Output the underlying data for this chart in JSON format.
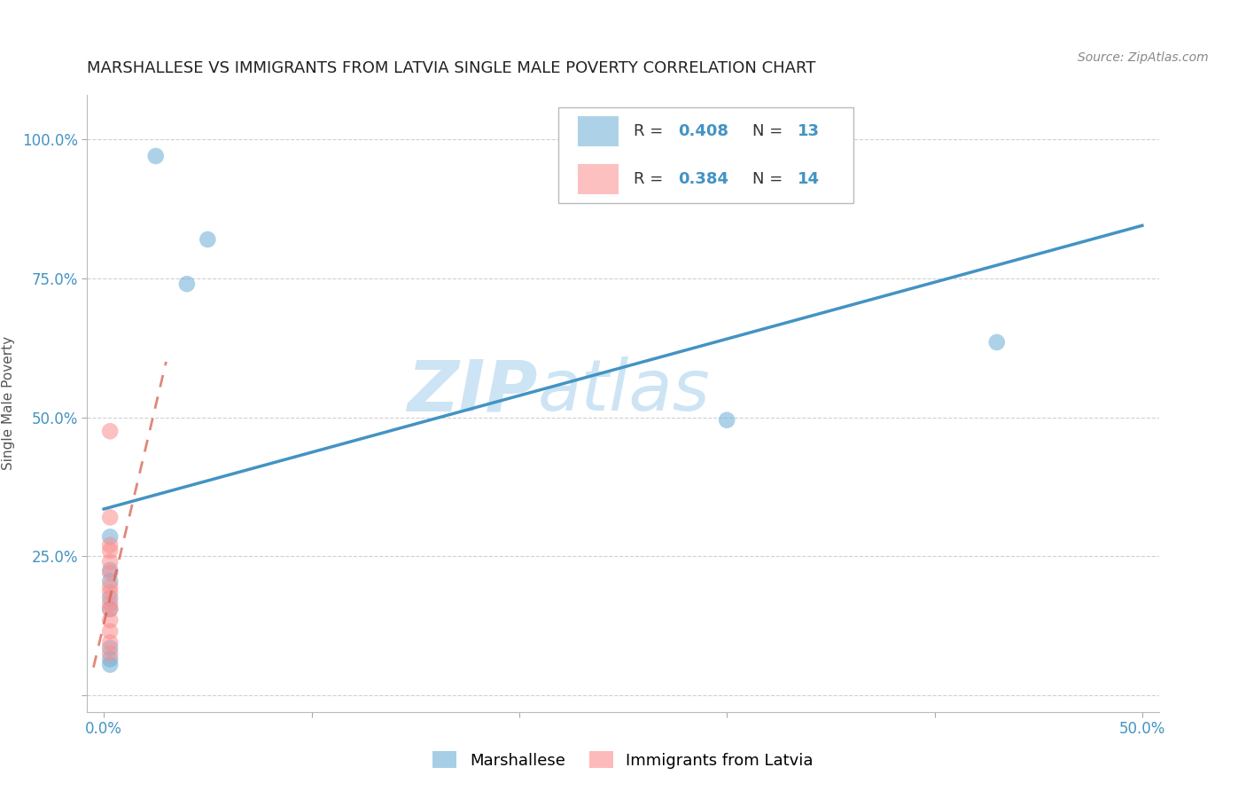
{
  "title": "MARSHALLESE VS IMMIGRANTS FROM LATVIA SINGLE MALE POVERTY CORRELATION CHART",
  "source": "Source: ZipAtlas.com",
  "ylabel": "Single Male Poverty",
  "xlim": [
    -0.008,
    0.508
  ],
  "ylim": [
    -0.03,
    1.08
  ],
  "xticks": [
    0.0,
    0.1,
    0.2,
    0.3,
    0.4,
    0.5
  ],
  "xticklabels": [
    "0.0%",
    "",
    "",
    "",
    "",
    "50.0%"
  ],
  "yticks": [
    0.0,
    0.25,
    0.5,
    0.75,
    1.0
  ],
  "yticklabels": [
    "",
    "25.0%",
    "50.0%",
    "75.0%",
    "100.0%"
  ],
  "marshallese_x": [
    0.025,
    0.04,
    0.05,
    0.003,
    0.003,
    0.003,
    0.003,
    0.003,
    0.003,
    0.003,
    0.003,
    0.43,
    0.3
  ],
  "marshallese_y": [
    0.97,
    0.74,
    0.82,
    0.285,
    0.225,
    0.205,
    0.175,
    0.155,
    0.085,
    0.065,
    0.055,
    0.635,
    0.495
  ],
  "latvia_x": [
    0.003,
    0.003,
    0.003,
    0.003,
    0.003,
    0.003,
    0.003,
    0.003,
    0.003,
    0.003,
    0.003,
    0.003,
    0.003,
    0.003
  ],
  "latvia_y": [
    0.475,
    0.32,
    0.27,
    0.26,
    0.24,
    0.22,
    0.195,
    0.185,
    0.165,
    0.155,
    0.135,
    0.115,
    0.095,
    0.075
  ],
  "blue_line_x0": 0.0,
  "blue_line_y0": 0.335,
  "blue_line_x1": 0.5,
  "blue_line_y1": 0.845,
  "pink_line_x0": -0.005,
  "pink_line_y0": 0.05,
  "pink_line_x1": 0.03,
  "pink_line_y1": 0.6,
  "R_marshallese": 0.408,
  "N_marshallese": 13,
  "R_latvia": 0.384,
  "N_latvia": 14,
  "color_blue": "#6baed6",
  "color_pink": "#fc8d8d",
  "color_blue_line": "#4393c3",
  "color_pink_line": "#d6604d",
  "color_tick": "#4393c3",
  "watermark_zip": "ZIP",
  "watermark_atlas": "atlas",
  "background_color": "#ffffff",
  "legend_blue_label": "Marshallese",
  "legend_pink_label": "Immigrants from Latvia",
  "title_fontsize": 13,
  "source_fontsize": 10,
  "tick_fontsize": 12,
  "scatter_size": 180,
  "scatter_alpha": 0.55
}
